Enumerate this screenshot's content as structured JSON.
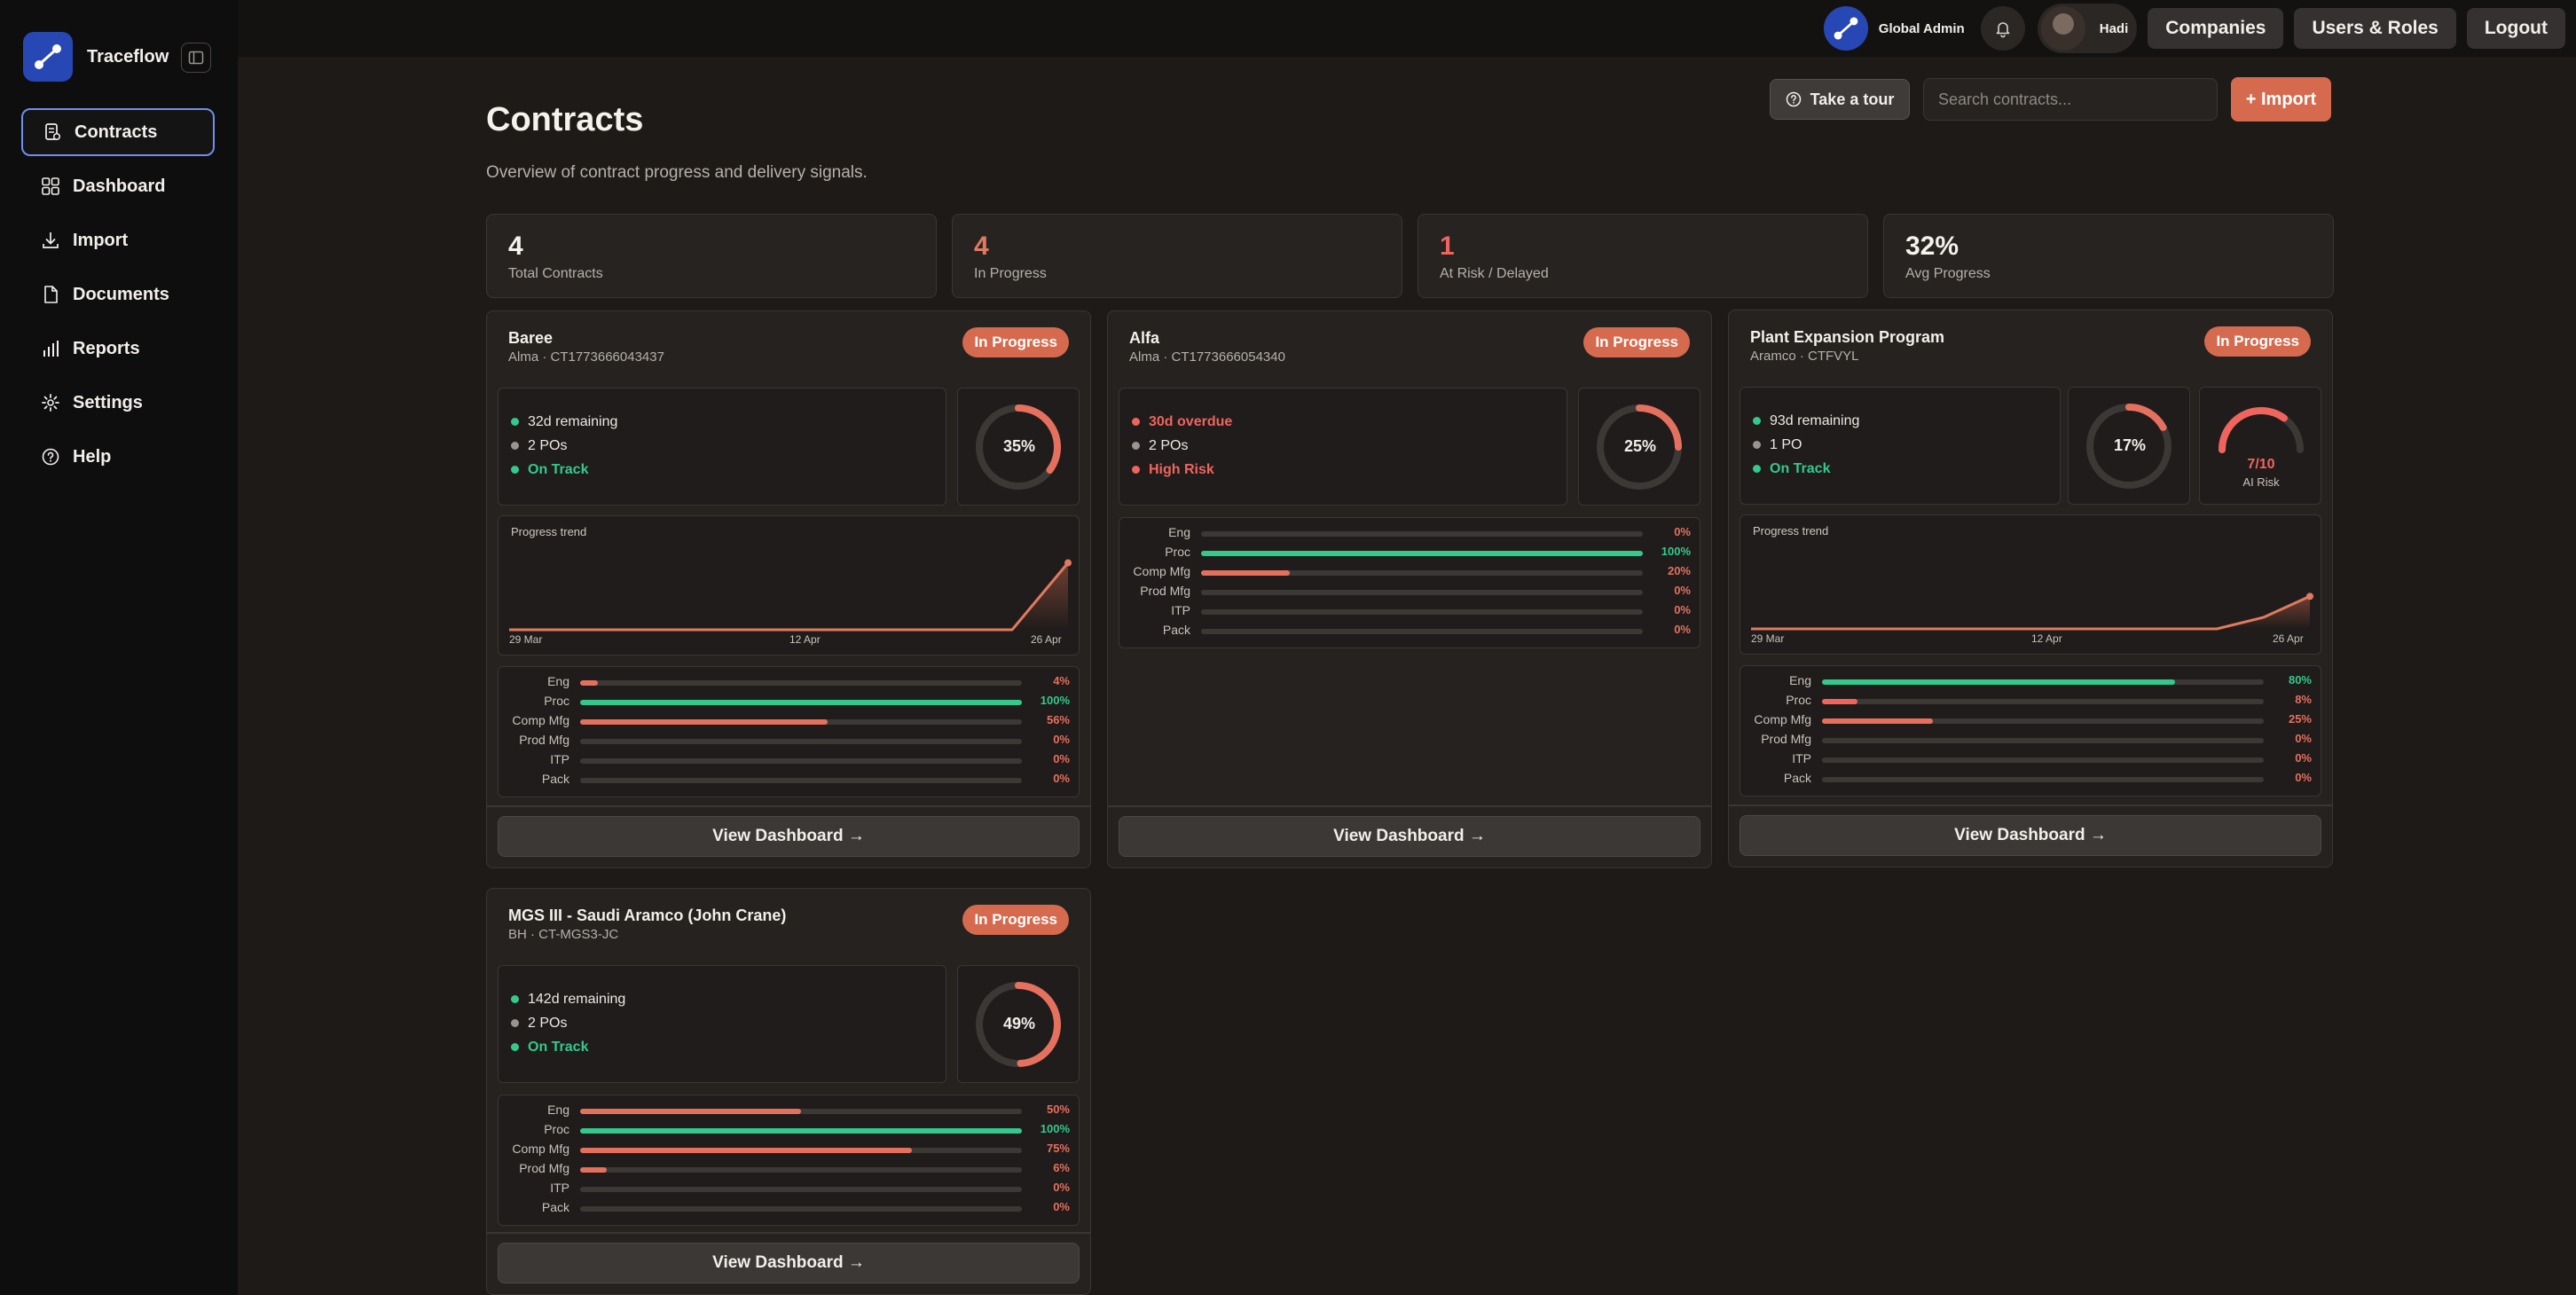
{
  "app": {
    "name": "Traceflow"
  },
  "sidebar": {
    "items": [
      {
        "label": "Contracts",
        "icon": "contracts-icon",
        "active": true
      },
      {
        "label": "Dashboard",
        "icon": "grid-icon"
      },
      {
        "label": "Import",
        "icon": "download-icon"
      },
      {
        "label": "Documents",
        "icon": "document-icon"
      },
      {
        "label": "Reports",
        "icon": "bar-chart-icon"
      },
      {
        "label": "Settings",
        "icon": "gear-icon"
      },
      {
        "label": "Help",
        "icon": "help-icon"
      }
    ]
  },
  "topbar": {
    "role": "Global Admin",
    "user": "Hadi",
    "buttons": [
      "Companies",
      "Users & Roles",
      "Logout"
    ]
  },
  "page": {
    "title": "Contracts",
    "subtitle": "Overview of contract progress and delivery signals.",
    "tour_label": "Take a tour",
    "search_placeholder": "Search contracts...",
    "import_label": "+ Import"
  },
  "stats": [
    {
      "value": "4",
      "label": "Total Contracts",
      "color": "#f5f1ec"
    },
    {
      "value": "4",
      "label": "In Progress",
      "color": "#e07a5f"
    },
    {
      "value": "1",
      "label": "At Risk / Delayed",
      "color": "#f0645e"
    },
    {
      "value": "32%",
      "label": "Avg Progress",
      "color": "#f5f1ec"
    }
  ],
  "colors": {
    "accent": "#d66a4e",
    "green": "#33c98b",
    "red": "#f0645e",
    "orange": "#e07a5f"
  },
  "cards": [
    {
      "title": "Baree",
      "subtitle": "Alma · CT1773666043437",
      "status": "In Progress",
      "signals": [
        {
          "text": "32d remaining",
          "dot": "#33c98b",
          "style": "normal"
        },
        {
          "text": "2 POs",
          "dot": "#9a938e",
          "style": "normal"
        },
        {
          "text": "On Track",
          "dot": "#33c98b",
          "style": "green"
        }
      ],
      "progress": 35,
      "progress_label": "35%",
      "trend": {
        "title": "Progress trend",
        "x_labels": [
          "29 Mar",
          "12 Apr",
          "26 Apr"
        ],
        "points": [
          0,
          0,
          0,
          0,
          0,
          0,
          0,
          0,
          0,
          0,
          35
        ]
      },
      "phases": [
        {
          "name": "Eng",
          "value": 4,
          "label": "4%"
        },
        {
          "name": "Proc",
          "value": 100,
          "label": "100%"
        },
        {
          "name": "Comp Mfg",
          "value": 56,
          "label": "56%"
        },
        {
          "name": "Prod Mfg",
          "value": 0,
          "label": "0%"
        },
        {
          "name": "ITP",
          "value": 0,
          "label": "0%"
        },
        {
          "name": "Pack",
          "value": 0,
          "label": "0%"
        }
      ],
      "button": "View Dashboard →"
    },
    {
      "title": "Alfa",
      "subtitle": "Alma · CT1773666054340",
      "status": "In Progress",
      "signals": [
        {
          "text": "30d overdue",
          "dot": "#f0645e",
          "style": "red"
        },
        {
          "text": "2 POs",
          "dot": "#9a938e",
          "style": "normal"
        },
        {
          "text": "High Risk",
          "dot": "#f0645e",
          "style": "red"
        }
      ],
      "progress": 25,
      "progress_label": "25%",
      "phases": [
        {
          "name": "Eng",
          "value": 0,
          "label": "0%"
        },
        {
          "name": "Proc",
          "value": 100,
          "label": "100%"
        },
        {
          "name": "Comp Mfg",
          "value": 20,
          "label": "20%"
        },
        {
          "name": "Prod Mfg",
          "value": 0,
          "label": "0%"
        },
        {
          "name": "ITP",
          "value": 0,
          "label": "0%"
        },
        {
          "name": "Pack",
          "value": 0,
          "label": "0%"
        }
      ],
      "button": "View Dashboard →"
    },
    {
      "title": "Plant Expansion Program",
      "subtitle": "Aramco · CTFVYL",
      "status": "In Progress",
      "signals": [
        {
          "text": "93d remaining",
          "dot": "#33c98b",
          "style": "normal"
        },
        {
          "text": "1 PO",
          "dot": "#9a938e",
          "style": "normal"
        },
        {
          "text": "On Track",
          "dot": "#33c98b",
          "style": "green"
        }
      ],
      "progress": 17,
      "progress_label": "17%",
      "ai_risk": {
        "value": 7,
        "max": 10,
        "label": "7/10",
        "caption": "AI Risk"
      },
      "trend": {
        "title": "Progress trend",
        "x_labels": [
          "29 Mar",
          "12 Apr",
          "26 Apr"
        ],
        "points": [
          0,
          0,
          0,
          0,
          0,
          0,
          0,
          0,
          0,
          0,
          0,
          6,
          17
        ]
      },
      "phases": [
        {
          "name": "Eng",
          "value": 80,
          "label": "80%"
        },
        {
          "name": "Proc",
          "value": 8,
          "label": "8%"
        },
        {
          "name": "Comp Mfg",
          "value": 25,
          "label": "25%"
        },
        {
          "name": "Prod Mfg",
          "value": 0,
          "label": "0%"
        },
        {
          "name": "ITP",
          "value": 0,
          "label": "0%"
        },
        {
          "name": "Pack",
          "value": 0,
          "label": "0%"
        }
      ],
      "button": "View Dashboard →"
    },
    {
      "title": "MGS III - Saudi Aramco (John Crane)",
      "subtitle": "BH · CT-MGS3-JC",
      "status": "In Progress",
      "signals": [
        {
          "text": "142d remaining",
          "dot": "#33c98b",
          "style": "normal"
        },
        {
          "text": "2 POs",
          "dot": "#9a938e",
          "style": "normal"
        },
        {
          "text": "On Track",
          "dot": "#33c98b",
          "style": "green"
        }
      ],
      "progress": 49,
      "progress_label": "49%",
      "phases": [
        {
          "name": "Eng",
          "value": 50,
          "label": "50%"
        },
        {
          "name": "Proc",
          "value": 100,
          "label": "100%"
        },
        {
          "name": "Comp Mfg",
          "value": 75,
          "label": "75%"
        },
        {
          "name": "Prod Mfg",
          "value": 6,
          "label": "6%"
        },
        {
          "name": "ITP",
          "value": 0,
          "label": "0%"
        },
        {
          "name": "Pack",
          "value": 0,
          "label": "0%"
        }
      ],
      "button": "View Dashboard →"
    }
  ]
}
